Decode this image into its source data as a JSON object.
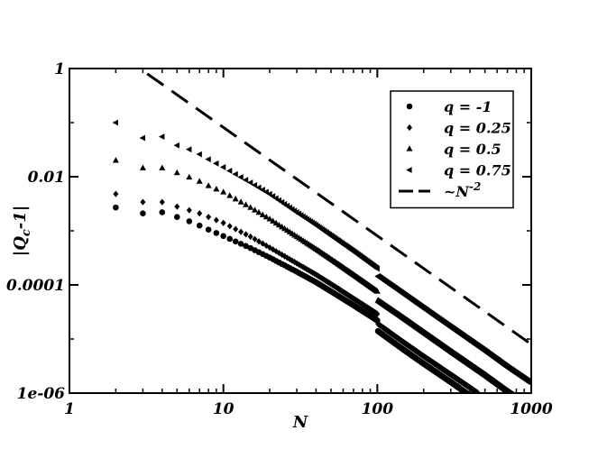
{
  "chart_data": {
    "type": "scatter",
    "xscale": "log",
    "yscale": "log",
    "xlim": [
      1,
      1000
    ],
    "ylim": [
      1e-06,
      1
    ],
    "xlabel": "N",
    "ylabel_parts": {
      "pre": "|Q",
      "sub": "c",
      "post": "-1|"
    },
    "x_ticks": [
      {
        "value": 1,
        "label": "1"
      },
      {
        "value": 10,
        "label": "10"
      },
      {
        "value": 100,
        "label": "100"
      },
      {
        "value": 1000,
        "label": "1000"
      }
    ],
    "y_ticks": [
      {
        "value": 1,
        "label": "1"
      },
      {
        "value": 0.01,
        "label": "0.01"
      },
      {
        "value": 0.0001,
        "label": "0.0001"
      },
      {
        "value": 1e-06,
        "label": "1e-06"
      }
    ],
    "grid": false,
    "legend_position": "top-right",
    "series": [
      {
        "name": "q = -1",
        "marker": "circle",
        "color": "#000000",
        "points": [
          [
            2,
            0.0027
          ],
          [
            3,
            0.0021
          ],
          [
            4,
            0.0022
          ],
          [
            5,
            0.0018
          ],
          [
            6,
            0.0015
          ],
          [
            7,
            0.00125
          ],
          [
            8,
            0.00105
          ],
          [
            10,
            0.0008
          ],
          [
            15,
            0.00048
          ],
          [
            20,
            0.00032
          ],
          [
            30,
            0.000175
          ],
          [
            40,
            0.000112
          ],
          [
            50,
            7.6e-05
          ],
          [
            70,
            4.2e-05
          ],
          [
            100,
            2.2e-05
          ],
          [
            101,
            1.4e-05
          ],
          [
            150,
            6.2e-06
          ],
          [
            200,
            3.5e-06
          ],
          [
            300,
            1.6e-06
          ],
          [
            400,
            9e-07
          ]
        ]
      },
      {
        "name": "q = 0.25",
        "marker": "diamond",
        "color": "#000000",
        "points": [
          [
            2,
            0.0048
          ],
          [
            3,
            0.0034
          ],
          [
            4,
            0.0034
          ],
          [
            5,
            0.0028
          ],
          [
            6,
            0.0024
          ],
          [
            7,
            0.0021
          ],
          [
            8,
            0.0018
          ],
          [
            10,
            0.0014
          ],
          [
            15,
            0.00078
          ],
          [
            20,
            0.00049
          ],
          [
            30,
            0.00025
          ],
          [
            40,
            0.000155
          ],
          [
            50,
            0.000104
          ],
          [
            70,
            5.6e-05
          ],
          [
            100,
            2.9e-05
          ],
          [
            101,
            1.9e-05
          ],
          [
            150,
            8.5e-06
          ],
          [
            200,
            4.8e-06
          ],
          [
            300,
            2.2e-06
          ],
          [
            450,
            1e-06
          ]
        ]
      },
      {
        "name": "q = 0.5",
        "marker": "triangle-up",
        "color": "#000000",
        "points": [
          [
            2,
            0.02
          ],
          [
            3,
            0.0145
          ],
          [
            4,
            0.0145
          ],
          [
            5,
            0.0118
          ],
          [
            6,
            0.0098
          ],
          [
            7,
            0.0082
          ],
          [
            8,
            0.0068
          ],
          [
            10,
            0.0052
          ],
          [
            15,
            0.0027
          ],
          [
            20,
            0.00165
          ],
          [
            30,
            0.00078
          ],
          [
            40,
            0.00046
          ],
          [
            50,
            0.0003
          ],
          [
            70,
            0.000155
          ],
          [
            100,
            7.6e-05
          ],
          [
            101,
            5.2e-05
          ],
          [
            150,
            2.4e-05
          ],
          [
            200,
            1.35e-05
          ],
          [
            300,
            6e-06
          ],
          [
            500,
            2.2e-06
          ],
          [
            700,
            1.1e-06
          ],
          [
            800,
            8.5e-07
          ]
        ]
      },
      {
        "name": "q = 0.75",
        "marker": "triangle-left",
        "color": "#000000",
        "points": [
          [
            2,
            0.1
          ],
          [
            3,
            0.052
          ],
          [
            4,
            0.055
          ],
          [
            5,
            0.038
          ],
          [
            6,
            0.032
          ],
          [
            7,
            0.026
          ],
          [
            8,
            0.021
          ],
          [
            10,
            0.015
          ],
          [
            15,
            0.0078
          ],
          [
            20,
            0.0048
          ],
          [
            30,
            0.0022
          ],
          [
            40,
            0.00128
          ],
          [
            50,
            0.00082
          ],
          [
            70,
            0.00042
          ],
          [
            100,
            0.0002
          ],
          [
            101,
            0.000145
          ],
          [
            150,
            6.6e-05
          ],
          [
            200,
            3.7e-05
          ],
          [
            300,
            1.65e-05
          ],
          [
            500,
            6e-06
          ],
          [
            700,
            3e-06
          ],
          [
            1000,
            1.5e-06
          ]
        ]
      },
      {
        "name": "~N",
        "name_superscript": "-2",
        "marker": "none",
        "line": "dashed",
        "color": "#000000",
        "points": [
          [
            3.2,
            0.8
          ],
          [
            1000,
            8e-06
          ]
        ]
      }
    ]
  }
}
